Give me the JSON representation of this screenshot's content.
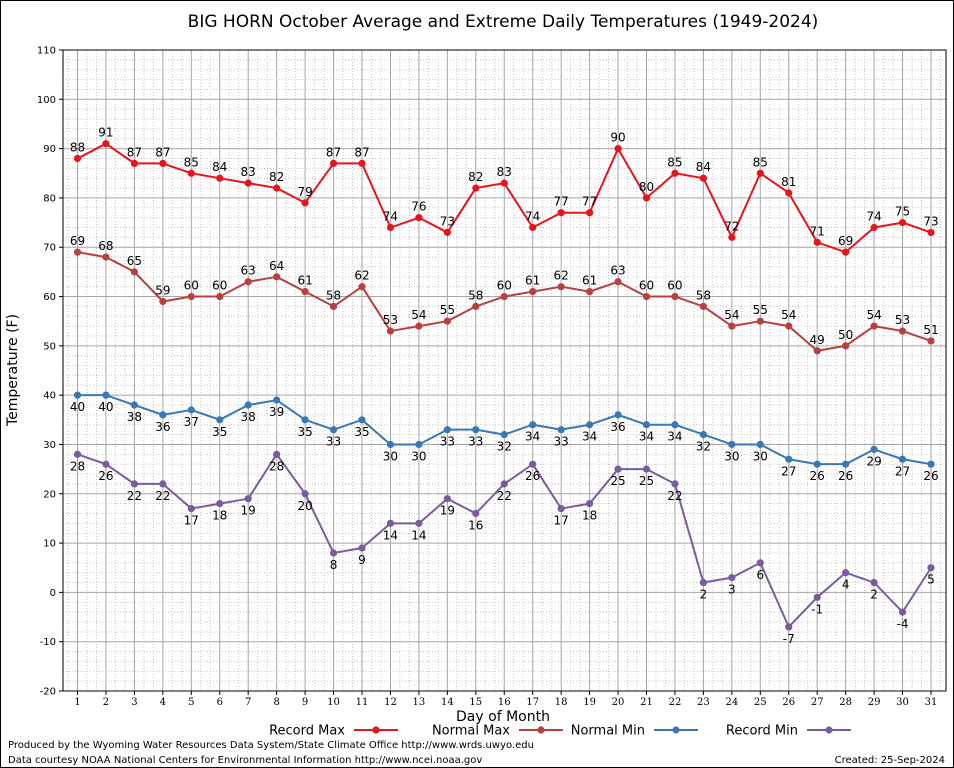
{
  "chart_data": {
    "type": "line",
    "title": "BIG HORN October Average and Extreme Daily Temperatures (1949-2024)",
    "xlabel": "Day of Month",
    "ylabel": "Temperature (F)",
    "ylim": [
      -20,
      110
    ],
    "yticks": [
      -20,
      -10,
      0,
      10,
      20,
      30,
      40,
      50,
      60,
      70,
      80,
      90,
      100,
      110
    ],
    "grid": true,
    "legend_placement": "bottom",
    "x": [
      1,
      2,
      3,
      4,
      5,
      6,
      7,
      8,
      9,
      10,
      11,
      12,
      13,
      14,
      15,
      16,
      17,
      18,
      19,
      20,
      21,
      22,
      23,
      24,
      25,
      26,
      27,
      28,
      29,
      30,
      31
    ],
    "series": [
      {
        "name": "Record Max",
        "color": "#e8141c",
        "label_position": "above",
        "values": [
          88,
          91,
          87,
          87,
          85,
          84,
          83,
          82,
          79,
          87,
          87,
          74,
          76,
          73,
          82,
          83,
          74,
          77,
          77,
          90,
          80,
          85,
          84,
          72,
          85,
          81,
          71,
          69,
          74,
          75,
          73
        ]
      },
      {
        "name": "Normal Max",
        "color": "#b8403e",
        "label_position": "above",
        "values": [
          69,
          68,
          65,
          59,
          60,
          60,
          63,
          64,
          61,
          58,
          62,
          53,
          54,
          55,
          58,
          60,
          61,
          62,
          61,
          63,
          60,
          60,
          58,
          54,
          55,
          54,
          49,
          50,
          54,
          53,
          51
        ]
      },
      {
        "name": "Normal Min",
        "color": "#3a78b4",
        "label_position": "below",
        "values": [
          40,
          40,
          38,
          36,
          37,
          35,
          38,
          39,
          35,
          33,
          35,
          30,
          30,
          33,
          33,
          32,
          34,
          33,
          34,
          36,
          34,
          34,
          32,
          30,
          30,
          27,
          26,
          26,
          29,
          27,
          26
        ]
      },
      {
        "name": "Record Min",
        "color": "#7a5c9e",
        "label_position": "below",
        "values": [
          28,
          26,
          22,
          22,
          17,
          18,
          19,
          28,
          20,
          8,
          9,
          14,
          14,
          19,
          16,
          22,
          26,
          17,
          18,
          25,
          25,
          22,
          2,
          3,
          6,
          -7,
          -1,
          4,
          2,
          -4,
          5
        ]
      }
    ],
    "footer": {
      "line1": "Produced by the Wyoming Water Resources Data System/State Climate Office http://www.wrds.uwyo.edu",
      "line2": "Data courtesy NOAA National Centers for Environmental Information http://www.ncei.noaa.gov",
      "created": "Created:  25-Sep-2024"
    }
  }
}
